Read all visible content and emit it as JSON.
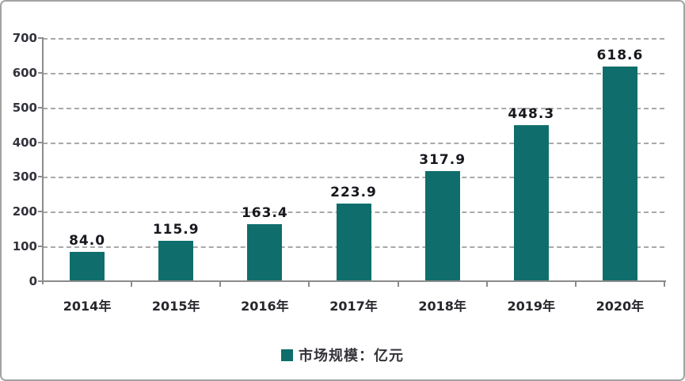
{
  "chart_data": {
    "type": "bar",
    "categories": [
      "2014年",
      "2015年",
      "2016年",
      "2017年",
      "2018年",
      "2019年",
      "2020年"
    ],
    "values": [
      84.0,
      115.9,
      163.4,
      223.9,
      317.9,
      448.3,
      618.6
    ],
    "value_labels": [
      "84.0",
      "115.9",
      "163.4",
      "223.9",
      "317.9",
      "448.3",
      "618.6"
    ],
    "title": "",
    "xlabel": "",
    "ylabel": "",
    "ylim": [
      0,
      700
    ],
    "yticks": [
      0,
      100,
      200,
      300,
      400,
      500,
      600,
      700
    ],
    "grid": "horizontal-dashed",
    "legend": {
      "label": "市场规模：亿元",
      "position": "bottom-center",
      "marker": "square"
    },
    "colors": {
      "bar": "#0f6e6c",
      "grid": "#a8a8a8",
      "axis": "#8b8b8b",
      "value_text": "#18181f",
      "tick_text": "#33333d",
      "frame_border": "#a3a3a3"
    }
  }
}
